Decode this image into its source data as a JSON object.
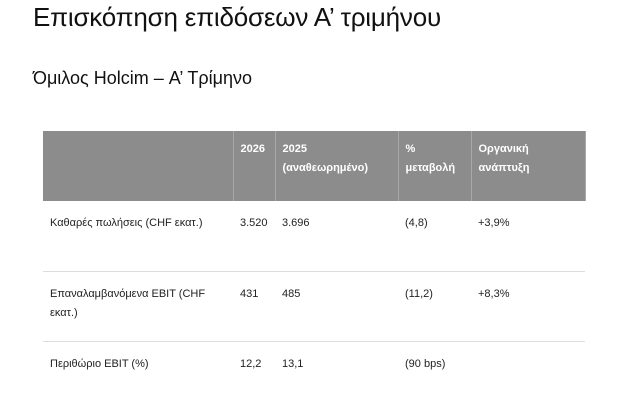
{
  "header": {
    "title": "Επισκόπηση επιδόσεων Α’ τριμήνου",
    "subtitle": "Όμιλος Holcim – Α’ Τρίμηνο"
  },
  "table": {
    "columns": [
      "",
      "2026",
      "2025 (αναθεωρημένο)",
      "% μεταβολή",
      "Οργανική ανάπτυξη"
    ],
    "rows": [
      [
        "Καθαρές πωλήσεις (CHF εκατ.)",
        "3.520",
        "3.696",
        "(4,8)",
        "+3,9%"
      ],
      [
        "Επαναλαμβανόμενα EBIT (CHF εκατ.)",
        "431",
        "485",
        "(11,2)",
        "+8,3%"
      ],
      [
        "Περιθώριο EBIT (%)",
        "12,2",
        "13,1",
        "(90 bps)",
        ""
      ]
    ]
  }
}
